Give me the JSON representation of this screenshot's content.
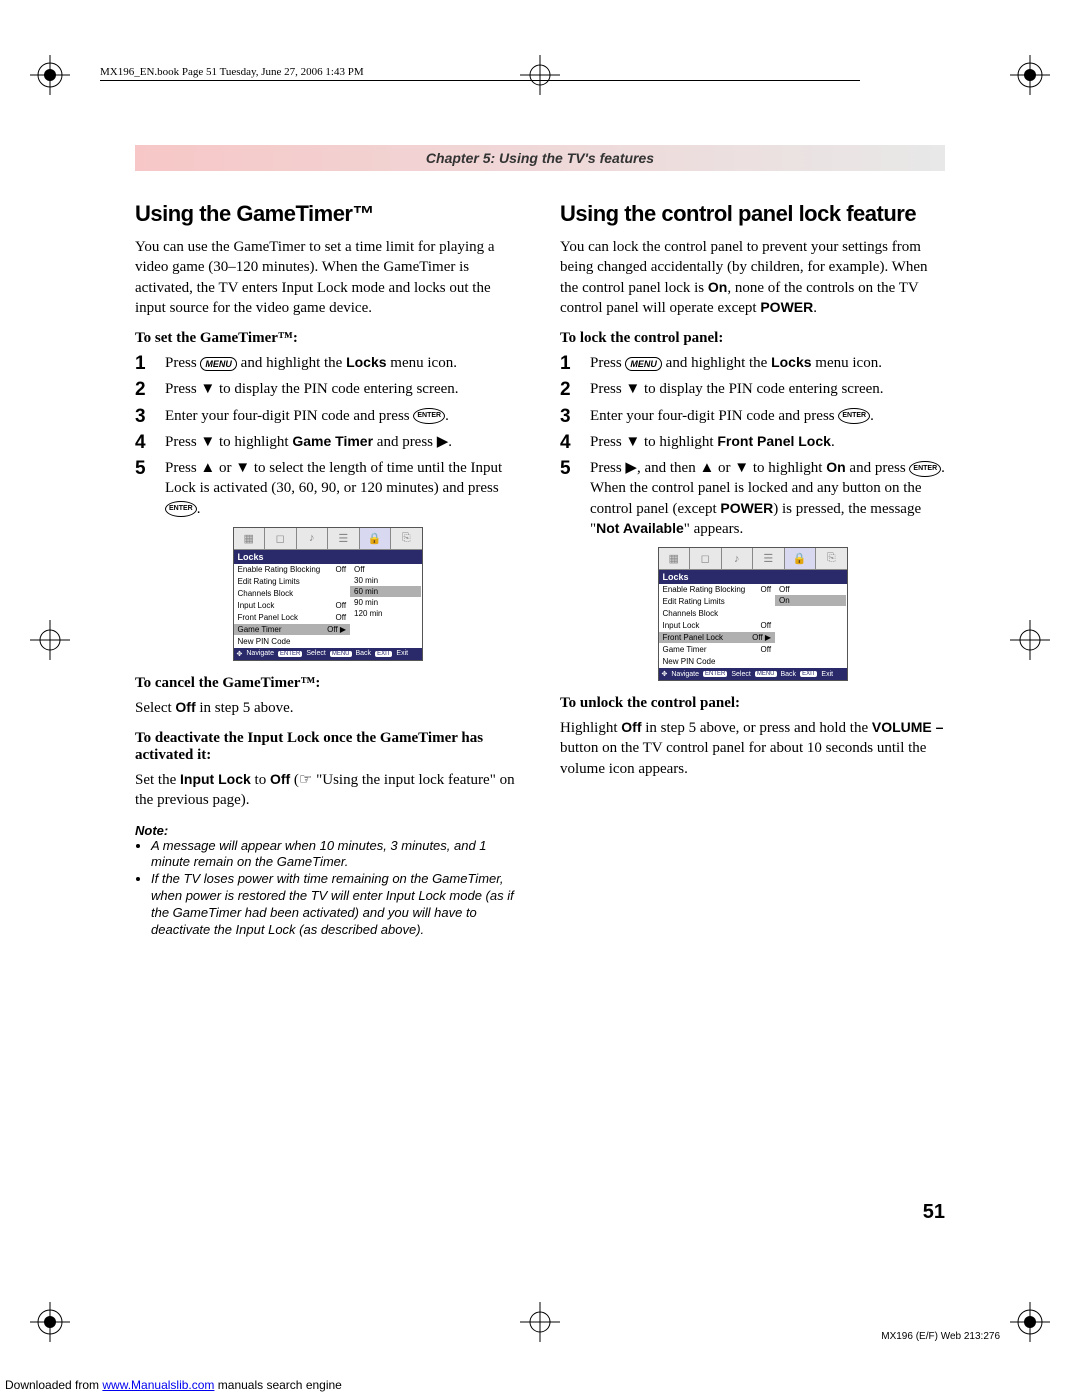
{
  "meta": {
    "header": "MX196_EN.book  Page 51  Tuesday, June 27, 2006  1:43 PM",
    "chapter": "Chapter 5: Using the TV's features",
    "page_number": "51",
    "footer_code": "MX196 (E/F) Web 213:276",
    "download_prefix": "Downloaded from ",
    "download_link": "www.Manualslib.com",
    "download_suffix": " manuals search engine"
  },
  "left": {
    "h2": "Using the GameTimer™",
    "intro": "You can use the GameTimer to set a time limit for playing a video game (30–120 minutes). When the GameTimer is activated, the TV enters Input Lock mode and locks out the input source for the video game device.",
    "sub1": "To set the GameTimer™:",
    "s1_a": "Press ",
    "s1_b": " and highlight the ",
    "s1_c": " menu icon.",
    "s1_bold": "Locks",
    "s2": "Press ▼ to display the PIN code entering screen.",
    "s3": "Enter your four-digit PIN code and press ",
    "s4_a": "Press ▼ to highlight ",
    "s4_bold": "Game Timer",
    "s4_b": " and press ▶.",
    "s5": "Press ▲ or ▼ to select the length of time until the Input Lock is activated (30, 60, 90, or 120 minutes) and press ",
    "sub2": "To cancel the GameTimer™:",
    "cancel": "Select ",
    "cancel_bold": "Off",
    "cancel_b": " in step 5 above.",
    "sub3": "To deactivate the Input Lock once the GameTimer has activated it:",
    "deact_a": "Set the ",
    "deact_b1": "Input Lock",
    "deact_c": " to ",
    "deact_b2": "Off",
    "deact_d": " (☞ \"Using the input lock feature\" on the previous page).",
    "note_head": "Note:",
    "note1": "A message will appear when 10 minutes, 3 minutes, and 1 minute remain on the GameTimer.",
    "note2": "If the TV loses power with time remaining on the GameTimer, when power is restored the TV will enter Input Lock mode (as if the GameTimer had been activated) and you will have to deactivate the Input Lock (as described above).",
    "osd": {
      "title": "Locks",
      "rows": [
        {
          "label": "Enable Rating Blocking",
          "val": "Off"
        },
        {
          "label": "Edit Rating Limits",
          "val": ""
        },
        {
          "label": "Channels Block",
          "val": ""
        },
        {
          "label": "Input Lock",
          "val": "Off"
        },
        {
          "label": "Front Panel Lock",
          "val": "Off"
        },
        {
          "label": "Game Timer",
          "val": "Off  ▶",
          "hl": true
        },
        {
          "label": "New PIN Code",
          "val": ""
        }
      ],
      "opts": [
        {
          "t": "Off"
        },
        {
          "t": "30 min"
        },
        {
          "t": "60 min",
          "hl": true
        },
        {
          "t": "90 min"
        },
        {
          "t": "120 min"
        }
      ],
      "foot": [
        "Navigate",
        "Select",
        "Back",
        "Exit"
      ],
      "foot_tags": [
        "ENTER",
        "MENU",
        "EXIT"
      ]
    }
  },
  "right": {
    "h2": "Using the control panel lock feature",
    "intro_a": "You can lock the control panel to prevent your settings from being changed accidentally (by children, for example). When the control panel lock is ",
    "intro_b1": "On",
    "intro_b": ", none of the controls on the TV control panel will operate except ",
    "intro_b2": "POWER",
    "sub1": "To lock the control panel:",
    "s1_a": "Press ",
    "s1_b": " and highlight the ",
    "s1_bold": "Locks",
    "s1_c": " menu icon.",
    "s2": "Press ▼ to display the PIN code entering screen.",
    "s3": "Enter your four-digit PIN code and press ",
    "s4_a": "Press ▼ to highlight ",
    "s4_bold": "Front Panel Lock",
    "s5_a": "Press ▶, and then ▲ or ▼ to highlight ",
    "s5_b1": "On",
    "s5_b": " and press ",
    "s5_c": ". When the control panel is locked and any button on the control panel (except ",
    "s5_b2": "POWER",
    "s5_d": ") is pressed, the message \"",
    "s5_b3": "Not Available",
    "s5_e": "\" appears.",
    "sub2": "To unlock the control panel:",
    "unlock_a": "Highlight ",
    "unlock_b1": "Off",
    "unlock_b": " in step 5 above, or press and hold the ",
    "unlock_b2": "VOLUME –",
    "unlock_c": " button on the TV control panel for about 10 seconds until the volume icon appears.",
    "osd": {
      "title": "Locks",
      "rows": [
        {
          "label": "Enable Rating Blocking",
          "val": "Off"
        },
        {
          "label": "Edit Rating Limits",
          "val": ""
        },
        {
          "label": "Channels Block",
          "val": ""
        },
        {
          "label": "Input Lock",
          "val": "Off"
        },
        {
          "label": "Front Panel Lock",
          "val": "Off ▶",
          "hl": true
        },
        {
          "label": "Game Timer",
          "val": "Off"
        },
        {
          "label": "New PIN Code",
          "val": ""
        }
      ],
      "opts": [
        {
          "t": "Off"
        },
        {
          "t": "On",
          "hl": true
        }
      ],
      "foot": [
        "Navigate",
        "Select",
        "Back",
        "Exit"
      ],
      "foot_tags": [
        "ENTER",
        "MENU",
        "EXIT"
      ]
    }
  },
  "btn": {
    "menu": "MENU",
    "enter": "ENTER"
  }
}
